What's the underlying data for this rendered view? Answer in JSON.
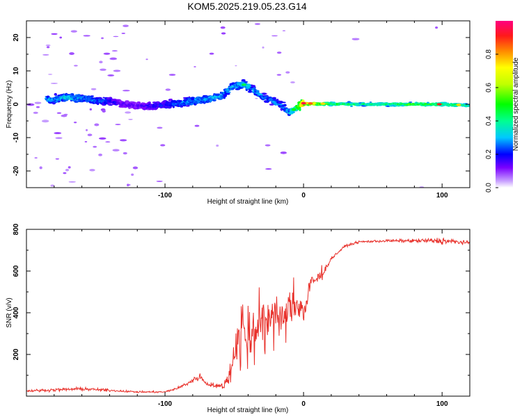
{
  "page_title": "KOM5.2025.219.05.23.G14",
  "chart_data": [
    {
      "type": "heatmap",
      "title": "KOM5.2025.219.05.23.G14",
      "xlabel": "Height of straight line (km)",
      "ylabel": "Frequency (Hz)",
      "xlim": [
        -200,
        120
      ],
      "ylim": [
        -25,
        25
      ],
      "xticks": [
        -100,
        0,
        100
      ],
      "xtick_labels": [
        "-100",
        "0",
        "100"
      ],
      "yticks": [
        -20,
        -10,
        0,
        10,
        20
      ],
      "ytick_labels": [
        "-20",
        "-10",
        "0",
        "10",
        "20"
      ],
      "colorbar": {
        "label": "Normalized spectral amplitude",
        "range": [
          0,
          1
        ],
        "ticks": [
          0.0,
          0.2,
          0.4,
          0.6,
          0.8
        ],
        "tick_labels": [
          "0.0",
          "0.2",
          "0.4",
          "0.6",
          "0.8"
        ],
        "colormap": "rainbow"
      },
      "ridge": {
        "x": [
          -180,
          -170,
          -160,
          -150,
          -140,
          -130,
          -120,
          -110,
          -100,
          -90,
          -80,
          -70,
          -60,
          -55,
          -50,
          -45,
          -40,
          -35,
          -30,
          -25,
          -20,
          -15,
          -10,
          -5,
          0,
          10,
          20,
          40,
          60,
          80,
          100,
          120
        ],
        "y": [
          1.5,
          2,
          1.8,
          1.2,
          0.8,
          0.0,
          -0.5,
          -0.5,
          -0.2,
          0.3,
          0.9,
          1.6,
          2.2,
          4,
          5.5,
          6,
          5.6,
          4,
          2.5,
          1.5,
          0.5,
          -0.5,
          -2.5,
          -1,
          0.3,
          0.2,
          0.1,
          0.0,
          0.0,
          0.0,
          0.0,
          -0.3
        ],
        "amplitude": [
          0.3,
          0.35,
          0.3,
          0.28,
          0.22,
          0.15,
          0.15,
          0.18,
          0.22,
          0.28,
          0.3,
          0.32,
          0.32,
          0.3,
          0.32,
          0.33,
          0.32,
          0.3,
          0.28,
          0.25,
          0.3,
          0.28,
          0.32,
          0.45,
          0.92,
          0.7,
          0.5,
          0.45,
          0.45,
          0.55,
          0.5,
          0.45
        ]
      }
    },
    {
      "type": "line",
      "xlabel": "Height of straight line (km)",
      "ylabel": "SNR (v/v)",
      "xlim": [
        -200,
        120
      ],
      "ylim": [
        0,
        800
      ],
      "xticks": [
        -100,
        0,
        100
      ],
      "xtick_labels": [
        "-100",
        "0",
        "100"
      ],
      "yticks": [
        200,
        400,
        600,
        800
      ],
      "ytick_labels": [
        "200",
        "400",
        "600",
        "800"
      ],
      "series": [
        {
          "name": "SNR",
          "color": "#e8302a",
          "x": [
            -200,
            -180,
            -160,
            -140,
            -120,
            -100,
            -90,
            -80,
            -75,
            -70,
            -60,
            -55,
            -50,
            -45,
            -40,
            -35,
            -30,
            -25,
            -20,
            -15,
            -10,
            -5,
            0,
            5,
            10,
            15,
            20,
            30,
            40,
            60,
            80,
            100,
            120
          ],
          "y": [
            25,
            30,
            35,
            28,
            20,
            20,
            40,
            75,
            95,
            60,
            45,
            70,
            200,
            340,
            250,
            320,
            360,
            380,
            420,
            350,
            420,
            450,
            400,
            540,
            560,
            600,
            660,
            720,
            740,
            745,
            745,
            745,
            735
          ],
          "noise": [
            8,
            10,
            12,
            8,
            6,
            6,
            10,
            20,
            25,
            15,
            20,
            60,
            130,
            170,
            170,
            150,
            150,
            140,
            130,
            120,
            110,
            100,
            90,
            60,
            40,
            20,
            12,
            8,
            8,
            10,
            12,
            25,
            10
          ]
        }
      ]
    }
  ],
  "colors": {
    "snr_line": "#e8302a",
    "frame": "#000000",
    "background": "#ffffff"
  }
}
